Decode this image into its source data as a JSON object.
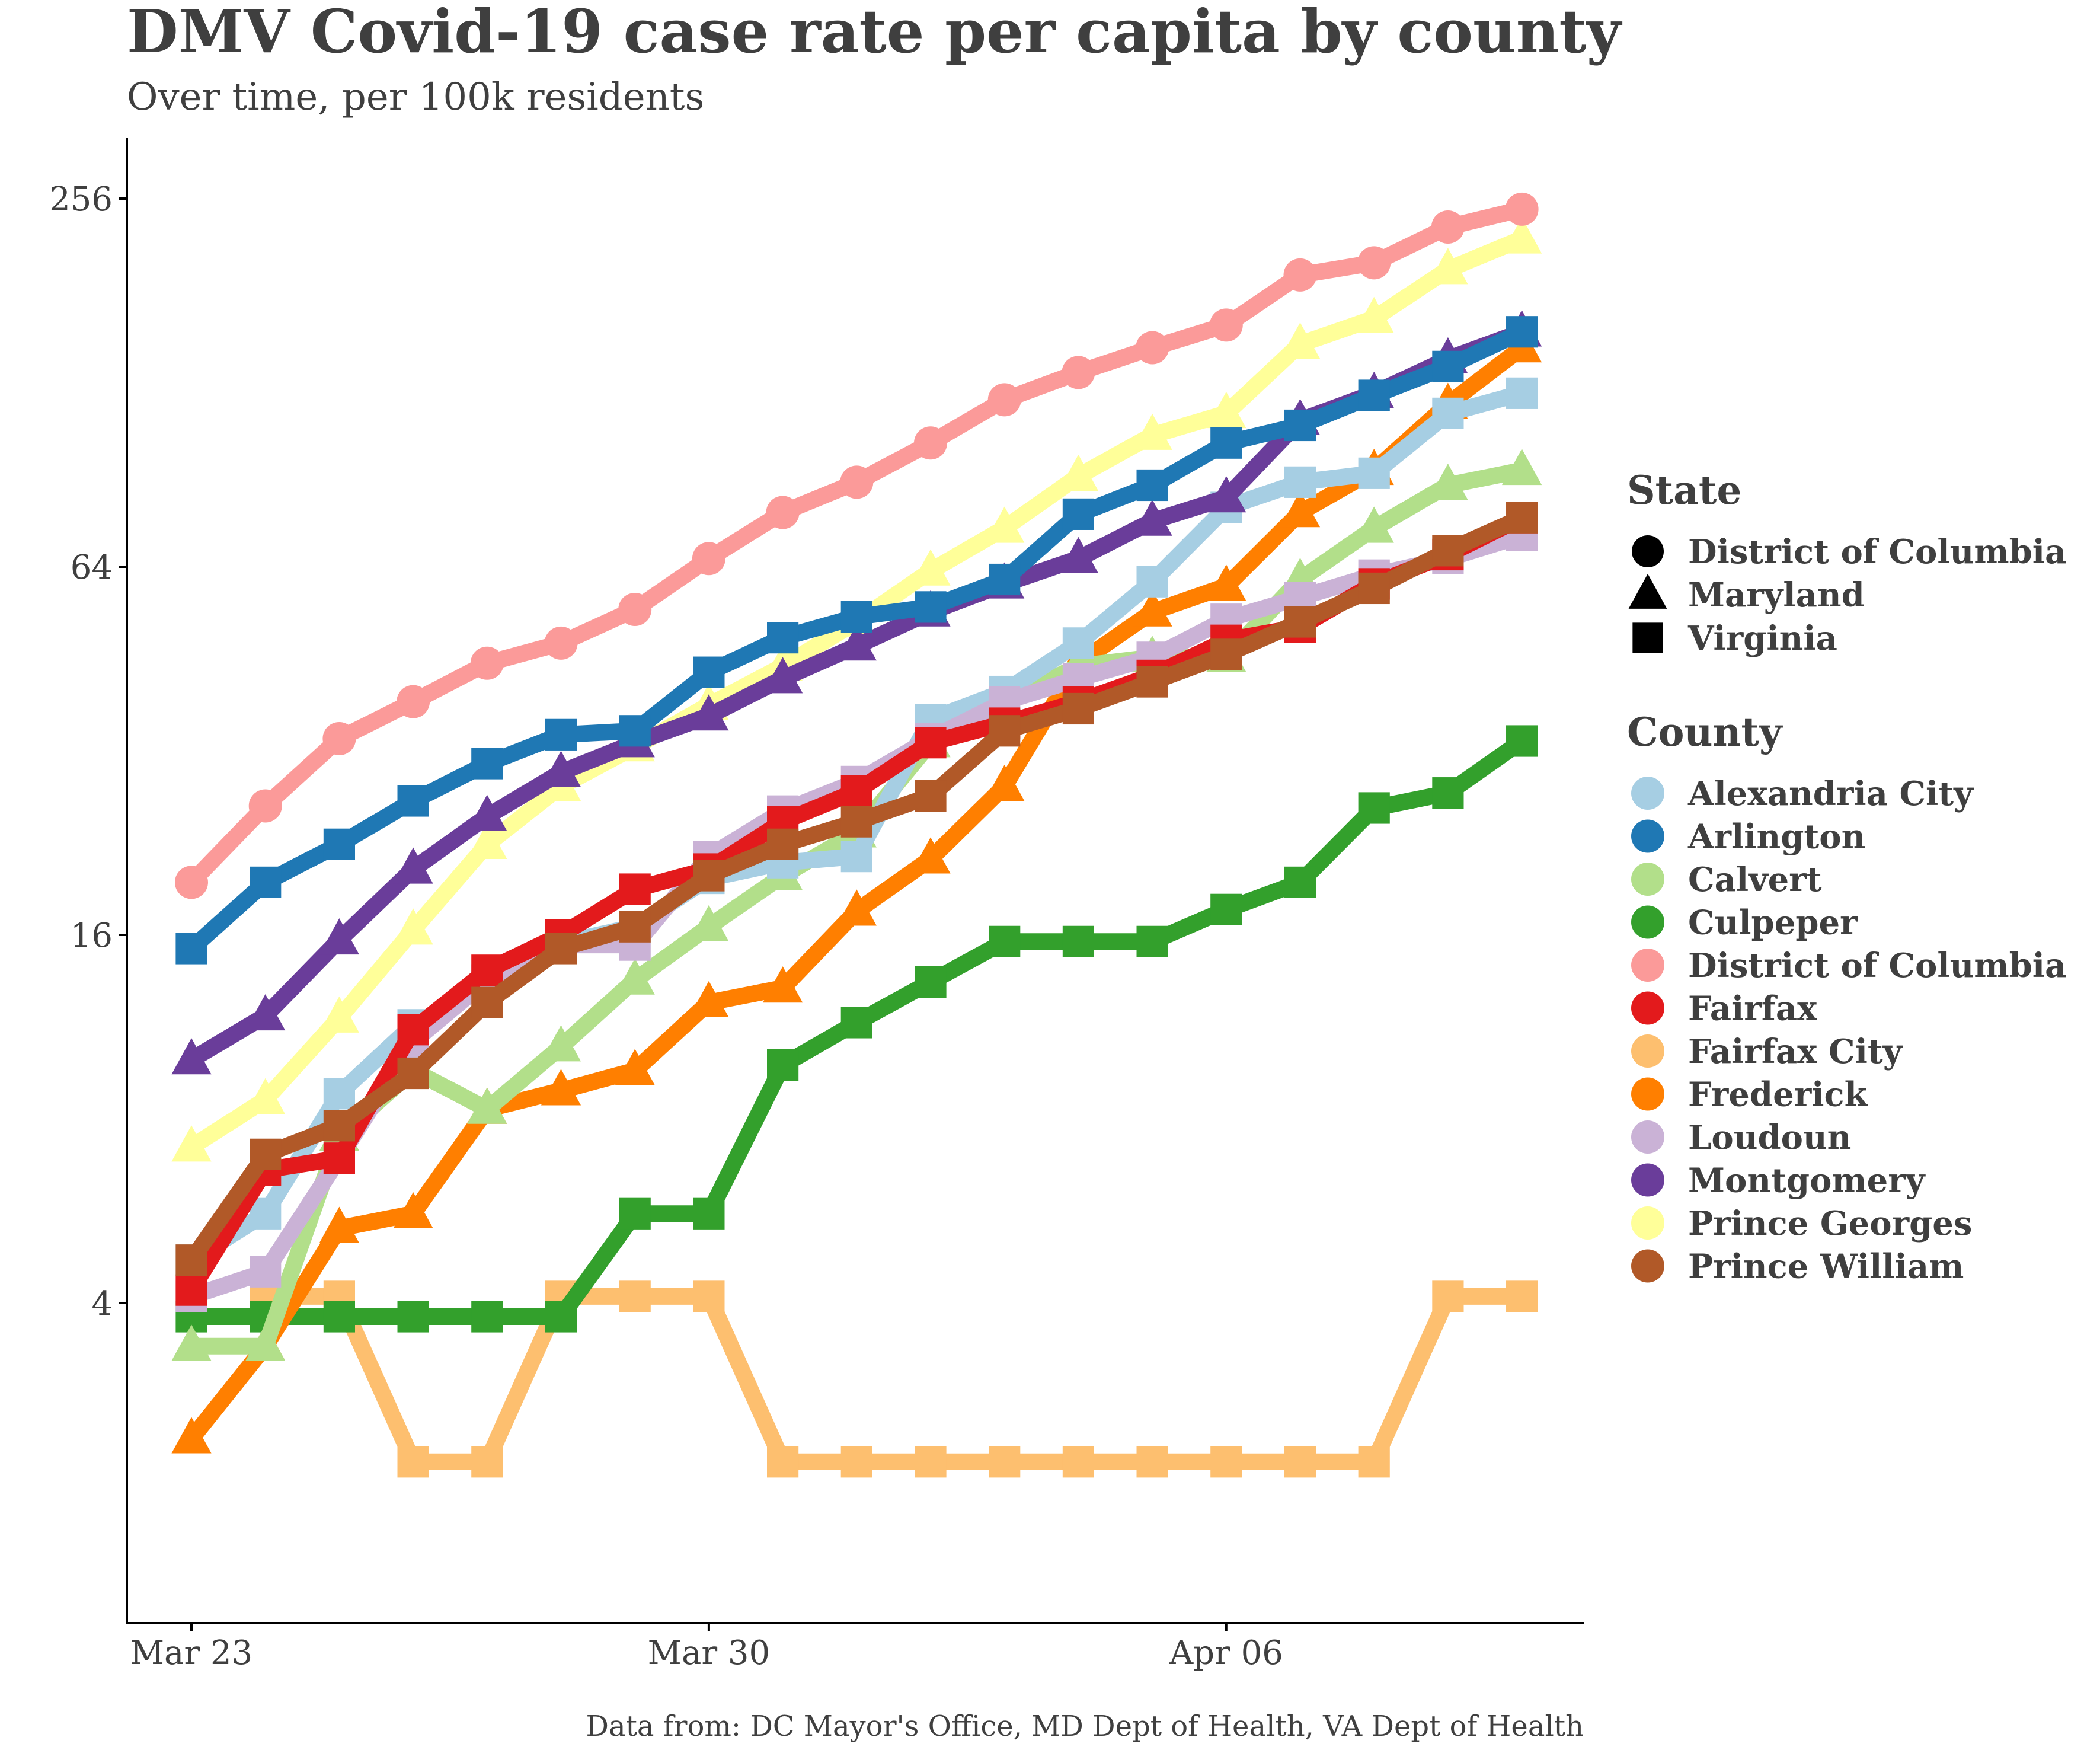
{
  "chart_data": {
    "type": "line",
    "title": "DMV Covid-19 case rate per capita by county",
    "subtitle": "Over time, per 100k residents",
    "caption": "Data from: DC Mayor's Office, MD Dept of Health, VA Dept of Health",
    "xlabel": "",
    "ylabel": "",
    "y_scale": "log2",
    "ylim": [
      2,
      300
    ],
    "x": [
      "Mar 23",
      "Mar 24",
      "Mar 25",
      "Mar 26",
      "Mar 27",
      "Mar 28",
      "Mar 29",
      "Mar 30",
      "Mar 31",
      "Apr 01",
      "Apr 02",
      "Apr 03",
      "Apr 04",
      "Apr 05",
      "Apr 06",
      "Apr 07",
      "Apr 08",
      "Apr 09",
      "Apr 10"
    ],
    "x_ticks": [
      "Mar 23",
      "Mar 30",
      "Apr 06"
    ],
    "y_ticks": [
      4,
      16,
      64,
      256
    ],
    "grid": false,
    "legend_position": "right",
    "legends": {
      "state": {
        "title": "State",
        "items": [
          {
            "label": "District of Columbia",
            "shape": "circle"
          },
          {
            "label": "Maryland",
            "shape": "triangle"
          },
          {
            "label": "Virginia",
            "shape": "square"
          }
        ]
      },
      "county": {
        "title": "County"
      }
    },
    "series": [
      {
        "name": "Fairfax City",
        "state": "Virginia",
        "shape": "square",
        "color": "#fdbf6f",
        "values": [
          null,
          4.1,
          4.1,
          2.2,
          2.2,
          4.1,
          4.1,
          4.1,
          2.2,
          2.2,
          2.2,
          2.2,
          2.2,
          2.2,
          2.2,
          2.2,
          2.2,
          4.1,
          4.1
        ]
      },
      {
        "name": "Culpeper",
        "state": "Virginia",
        "shape": "square",
        "color": "#33a02c",
        "values": [
          3.8,
          3.8,
          3.8,
          3.8,
          3.8,
          3.8,
          5.6,
          5.6,
          9.8,
          11.5,
          13.4,
          15.6,
          15.6,
          15.6,
          17.6,
          19.5,
          25.8,
          27.3,
          33.2
        ]
      },
      {
        "name": "Frederick",
        "state": "Maryland",
        "shape": "triangle",
        "color": "#ff7f00",
        "values": [
          2.4,
          3.4,
          5.3,
          5.6,
          8.3,
          8.9,
          9.6,
          12.4,
          13.1,
          17.5,
          21.3,
          28.0,
          44.5,
          54.0,
          59.5,
          78.5,
          92.0,
          118.0,
          146.0
        ]
      },
      {
        "name": "Calvert",
        "state": "Maryland",
        "shape": "triangle",
        "color": "#b2df8a",
        "values": [
          3.4,
          3.4,
          7.5,
          9.6,
          8.3,
          10.5,
          13.5,
          16.5,
          20.0,
          23.5,
          33.0,
          38.5,
          44.0,
          45.5,
          45.5,
          61.0,
          74.0,
          87.0,
          92.0
        ]
      },
      {
        "name": "Alexandria City",
        "state": "Virginia",
        "shape": "square",
        "color": "#a6cee3",
        "values": [
          4.7,
          5.6,
          8.8,
          11.4,
          13.2,
          15.5,
          16.5,
          19.8,
          21.0,
          21.5,
          36.0,
          40.0,
          48.0,
          60.5,
          80.0,
          88.0,
          91.0,
          114.0,
          123.0
        ]
      },
      {
        "name": "Loudoun",
        "state": "Virginia",
        "shape": "square",
        "color": "#cab2d6",
        "values": [
          4.1,
          4.5,
          6.9,
          10.7,
          13.5,
          15.4,
          15.4,
          21.5,
          25.5,
          28.5,
          33.5,
          38.5,
          42.0,
          45.5,
          52.5,
          57.0,
          62.0,
          66.0,
          72.0
        ]
      },
      {
        "name": "Fairfax",
        "state": "Virginia",
        "shape": "square",
        "color": "#e31a1c",
        "values": [
          4.2,
          6.6,
          6.9,
          11.2,
          14.0,
          16.0,
          19.0,
          20.5,
          24.5,
          27.5,
          33.0,
          35.5,
          38.5,
          42.5,
          48.5,
          51.0,
          60.0,
          67.0,
          77.0
        ]
      },
      {
        "name": "Prince William",
        "state": "Virginia",
        "shape": "square",
        "color": "#b15928",
        "values": [
          4.7,
          7.0,
          7.8,
          9.5,
          12.4,
          15.2,
          16.5,
          20.0,
          22.5,
          24.5,
          27.0,
          34.5,
          37.5,
          41.5,
          46.0,
          52.0,
          59.0,
          68.0,
          77.0
        ]
      },
      {
        "name": "Prince Georges",
        "state": "Maryland",
        "shape": "triangle",
        "color": "#ffff99",
        "values": [
          7.2,
          8.6,
          11.7,
          16.3,
          22.5,
          28.0,
          32.5,
          38.0,
          44.0,
          52.0,
          63.0,
          74.0,
          90.0,
          105.0,
          114.0,
          148.0,
          163.0,
          196.0,
          220.0
        ]
      },
      {
        "name": "Montgomery",
        "state": "Maryland",
        "shape": "triangle",
        "color": "#6a3d9a",
        "values": [
          10.0,
          11.8,
          15.7,
          20.5,
          25.0,
          29.5,
          33.0,
          36.5,
          42.0,
          47.5,
          54.0,
          60.0,
          66.0,
          76.0,
          83.0,
          111.0,
          123.0,
          140.0,
          155.0
        ]
      },
      {
        "name": "Arlington",
        "state": "Virginia",
        "shape": "square",
        "color": "#1f78b4",
        "values": [
          15.2,
          19.5,
          22.5,
          26.5,
          30.5,
          34.0,
          34.5,
          43.0,
          49.0,
          53.0,
          55.0,
          61.0,
          78.0,
          87.0,
          102.0,
          109.0,
          122.0,
          136.0,
          155.0
        ]
      },
      {
        "name": "District of Columbia",
        "state": "District of Columbia",
        "shape": "circle",
        "color": "#fb9a99",
        "values": [
          19.5,
          26.0,
          33.5,
          38.5,
          44.5,
          48.0,
          54.5,
          66.0,
          78.5,
          88.0,
          102.0,
          120.0,
          133.0,
          146.0,
          159.0,
          192.0,
          201.0,
          230.0,
          246.0
        ]
      }
    ],
    "county_legend_order": [
      "Alexandria City",
      "Arlington",
      "Calvert",
      "Culpeper",
      "District of Columbia",
      "Fairfax",
      "Fairfax City",
      "Frederick",
      "Loudoun",
      "Montgomery",
      "Prince Georges",
      "Prince William"
    ]
  }
}
